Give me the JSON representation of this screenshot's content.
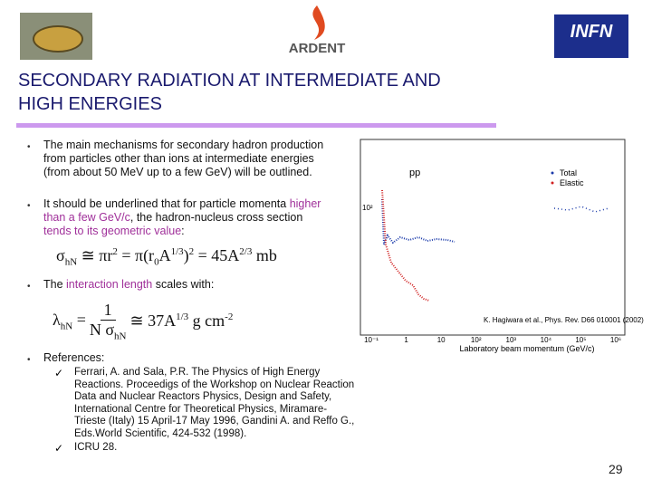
{
  "header": {
    "logo_center": "ARDENT",
    "logo_right": "INFN"
  },
  "title": [
    "SECONDARY RADIATION AT INTERMEDIATE AND",
    "HIGH ENERGIES"
  ],
  "bullets": [
    [
      {
        "text": "The main mechanisms for secondary hadron production from particles other than ions at intermediate energies (from about 50 MeV up to a few GeV) will be outlined."
      }
    ],
    [
      {
        "text": "It should be underlined that for particle momenta "
      },
      {
        "hl": "higher than a few GeV/c"
      },
      {
        "text": ", the hadron-nucleus cross section "
      },
      {
        "hl": "tends to its geometric value"
      },
      {
        "text": ":"
      }
    ],
    [
      {
        "text": "The "
      },
      {
        "hl": "interaction length"
      },
      {
        "text": " scales with:"
      }
    ],
    [
      {
        "text": "References:"
      }
    ]
  ],
  "formula1": [
    {
      "text": "σ"
    },
    {
      "sub": "hN"
    },
    {
      "text": " ≅ πr"
    },
    {
      "sup": "2"
    },
    {
      "text": " = π(r"
    },
    {
      "sub": "0"
    },
    {
      "text": "A"
    },
    {
      "sup": "1/3"
    },
    {
      "text": ")"
    },
    {
      "sup": "2"
    },
    {
      "text": " = 45A"
    },
    {
      "sup": "2/3"
    },
    {
      "text": " mb"
    }
  ],
  "formula2": {
    "left": [
      {
        "text": "λ"
      },
      {
        "sub": "hN"
      },
      {
        "text": " ="
      }
    ],
    "numerator": [
      {
        "text": "1"
      }
    ],
    "denominator": [
      {
        "text": "N σ"
      },
      {
        "sub": "hN"
      }
    ],
    "right": [
      {
        "text": "≅ 37A"
      },
      {
        "sup": "1/3"
      },
      {
        "text": " g cm"
      },
      {
        "sup": "-2"
      }
    ]
  },
  "references": [
    "Ferrari, A. and Sala, P.R. The Physics of High Energy Reactions. Proceedigs of the Workshop on Nuclear Reaction Data and Nuclear Reactors Physics, Design and Safety, International Centre for Theoretical Physics, Miramare-Trieste (Italy) 15 April-17 May 1996, Gandini A. and Reffo G., Eds.World Scientific, 424-532 (1998).",
    "ICRU 28."
  ],
  "figure": {
    "reaction": "pp",
    "legend": [
      "Total",
      "Elastic"
    ],
    "citation": "K. Hagiwara et al., Phys. Rev. D66 010001 (2002)",
    "x_label": "Laboratory beam momentum (GeV/c)",
    "x_ticks": [
      "10⁻¹",
      "1",
      "10",
      "10²",
      "10³",
      "10⁴",
      "10⁵",
      "10⁶"
    ],
    "y_tick": "10²"
  },
  "page_number": "29"
}
